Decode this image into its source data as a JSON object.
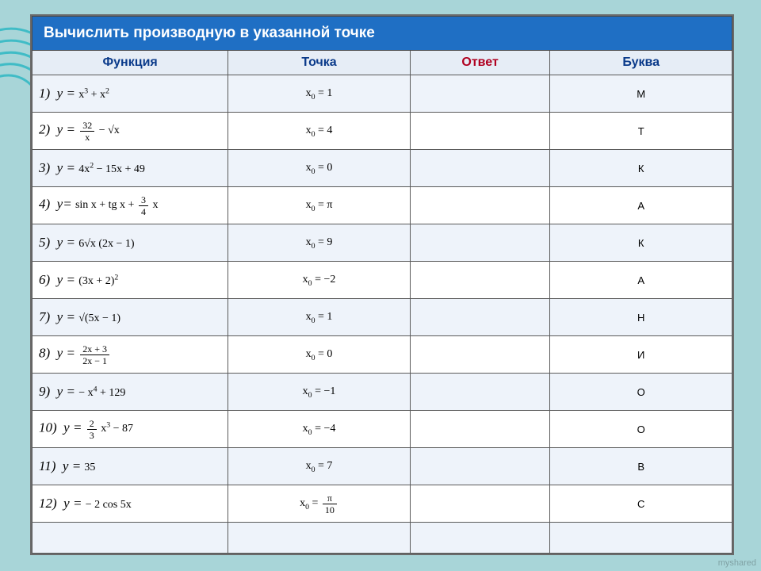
{
  "title": "Вычислить производную в указанной точке",
  "columns": [
    "Функция",
    "Точка",
    "Ответ",
    "Буква"
  ],
  "decor_color": "#2fb8c4",
  "watermark": "myshared",
  "rows": [
    {
      "num": "1)",
      "prefix": "y =",
      "func_html": "x<sup>3</sup> + x<sup>2</sup>",
      "point_html": "x<sub>0</sub> = 1",
      "answer": "",
      "letter": "М"
    },
    {
      "num": "2)",
      "prefix": "y =",
      "func_html": "<span class='frac'><span class='n'>32</span><span class='d'>x</span></span> − √x",
      "point_html": "x<sub>0</sub> = 4",
      "answer": "",
      "letter": "Т"
    },
    {
      "num": "3)",
      "prefix": "y =",
      "func_html": "4x<sup>2</sup> − 15x + 49",
      "point_html": "x<sub>0</sub> = 0",
      "answer": "",
      "letter": "К"
    },
    {
      "num": "4)",
      "prefix": "y=",
      "func_html": "sin x + tg x + <span class='frac'><span class='n'>3</span><span class='d'>4</span></span> x",
      "point_html": "x<sub>0</sub> = π",
      "answer": "",
      "letter": "А"
    },
    {
      "num": "5)",
      "prefix": "y =",
      "func_html": "6√x (2x − 1)",
      "point_html": "x<sub>0</sub> = 9",
      "answer": "",
      "letter": "К"
    },
    {
      "num": "6)",
      "prefix": "y =",
      "func_html": "(3x + 2)<sup>2</sup>",
      "point_html": "x<sub>0</sub> = −2",
      "answer": "",
      "letter": "А"
    },
    {
      "num": "7)",
      "prefix": "y =",
      "func_html": "√(5x − 1)",
      "point_html": "x<sub>0</sub> = 1",
      "answer": "",
      "letter": "Н"
    },
    {
      "num": "8)",
      "prefix": "y =",
      "func_html": "<span class='frac'><span class='n'>2x + 3</span><span class='d'>2x − 1</span></span>",
      "point_html": "x<sub>0</sub> = 0",
      "answer": "",
      "letter": "И"
    },
    {
      "num": "9)",
      "prefix": "y =",
      "func_html": "− x<sup>4</sup> + 129",
      "point_html": "x<sub>0</sub> = −1",
      "answer": "",
      "letter": "О"
    },
    {
      "num": "10)",
      "prefix": "y =",
      "func_html": "<span class='frac'><span class='n'>2</span><span class='d'>3</span></span> x<sup>3</sup> − 87",
      "point_html": "x<sub>0</sub> = −4",
      "answer": "",
      "letter": "О"
    },
    {
      "num": "11)",
      "prefix": "y =",
      "func_html": "35",
      "point_html": "x<sub>0</sub> = 7",
      "answer": "",
      "letter": "В"
    },
    {
      "num": "12)",
      "prefix": "y =",
      "func_html": "− 2 cos 5x",
      "point_html": "x<sub>0</sub> = <span class='frac'><span class='n'>π</span><span class='d'>10</span></span>",
      "answer": "",
      "letter": "С"
    }
  ]
}
